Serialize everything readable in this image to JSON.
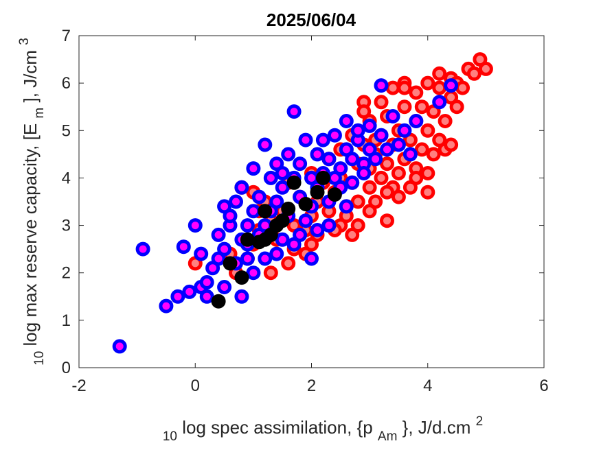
{
  "chart_data": {
    "type": "scatter",
    "title": "2025/06/04",
    "xlabel": {
      "prefix": "10",
      "main": "log spec assimilation, {p",
      "sub": "Am",
      "suffix": "}, J/d.cm",
      "sup": "2"
    },
    "ylabel": {
      "prefix": "10",
      "main": "log max reserve capacity, [E",
      "sub": "m",
      "suffix": "], J/cm",
      "sup": "3"
    },
    "xlim": [
      -2,
      6
    ],
    "ylim": [
      0,
      7
    ],
    "x_ticks": [
      -2,
      0,
      2,
      4,
      6
    ],
    "y_ticks": [
      0,
      1,
      2,
      3,
      4,
      5,
      6,
      7
    ],
    "grid": false,
    "legend": "none",
    "series": [
      {
        "ring_color": "#ff0000",
        "center_color": "#ff8080",
        "points": [
          [
            0.0,
            2.2
          ],
          [
            0.7,
            2.0
          ],
          [
            0.9,
            2.3
          ],
          [
            1.0,
            2.6
          ],
          [
            1.1,
            2.9
          ],
          [
            0.8,
            3.8
          ],
          [
            1.0,
            3.7
          ],
          [
            1.2,
            3.5
          ],
          [
            1.3,
            3.1
          ],
          [
            1.4,
            2.7
          ],
          [
            1.5,
            3.3
          ],
          [
            1.6,
            2.2
          ],
          [
            1.7,
            3.0
          ],
          [
            1.8,
            3.6
          ],
          [
            1.9,
            2.9
          ],
          [
            2.0,
            3.2
          ],
          [
            2.0,
            4.1
          ],
          [
            2.1,
            3.5
          ],
          [
            2.2,
            3.9
          ],
          [
            2.3,
            3.3
          ],
          [
            2.3,
            4.4
          ],
          [
            2.4,
            3.7
          ],
          [
            2.5,
            3.0
          ],
          [
            2.5,
            4.0
          ],
          [
            2.6,
            4.6
          ],
          [
            2.6,
            3.4
          ],
          [
            2.7,
            3.9
          ],
          [
            2.7,
            4.9
          ],
          [
            2.8,
            3.5
          ],
          [
            2.8,
            4.3
          ],
          [
            2.9,
            4.7
          ],
          [
            2.9,
            5.6
          ],
          [
            3.0,
            3.8
          ],
          [
            3.0,
            4.2
          ],
          [
            3.0,
            5.2
          ],
          [
            3.1,
            4.5
          ],
          [
            3.1,
            3.5
          ],
          [
            3.2,
            4.0
          ],
          [
            3.2,
            4.9
          ],
          [
            3.2,
            5.6
          ],
          [
            3.3,
            4.3
          ],
          [
            3.3,
            5.3
          ],
          [
            3.4,
            3.8
          ],
          [
            3.4,
            4.7
          ],
          [
            3.4,
            5.9
          ],
          [
            3.5,
            4.1
          ],
          [
            3.5,
            5.0
          ],
          [
            3.6,
            4.4
          ],
          [
            3.6,
            5.5
          ],
          [
            3.6,
            6.0
          ],
          [
            3.7,
            3.8
          ],
          [
            3.7,
            4.8
          ],
          [
            3.8,
            4.2
          ],
          [
            3.8,
            5.2
          ],
          [
            3.8,
            5.8
          ],
          [
            3.9,
            4.6
          ],
          [
            3.9,
            5.5
          ],
          [
            4.0,
            4.1
          ],
          [
            4.0,
            5.0
          ],
          [
            4.0,
            6.0
          ],
          [
            4.1,
            4.5
          ],
          [
            4.1,
            5.4
          ],
          [
            4.2,
            4.8
          ],
          [
            4.2,
            5.9
          ],
          [
            4.2,
            6.2
          ],
          [
            4.3,
            5.2
          ],
          [
            4.3,
            4.6
          ],
          [
            4.4,
            5.7
          ],
          [
            4.4,
            6.1
          ],
          [
            4.5,
            5.5
          ],
          [
            4.5,
            6.0
          ],
          [
            4.6,
            5.9
          ],
          [
            4.7,
            6.3
          ],
          [
            4.8,
            6.2
          ],
          [
            4.9,
            6.5
          ],
          [
            5.0,
            6.3
          ],
          [
            1.7,
            2.5
          ],
          [
            2.1,
            2.8
          ],
          [
            2.6,
            3.2
          ],
          [
            3.0,
            3.3
          ],
          [
            1.3,
            2.0
          ],
          [
            3.5,
            3.6
          ],
          [
            4.0,
            3.7
          ],
          [
            3.3,
            3.1
          ],
          [
            2.4,
            2.9
          ],
          [
            1.9,
            2.4
          ],
          [
            2.8,
            3.0
          ],
          [
            3.8,
            4.0
          ],
          [
            4.4,
            4.7
          ],
          [
            3.1,
            4.8
          ],
          [
            2.2,
            4.0
          ],
          [
            2.5,
            4.6
          ],
          [
            1.6,
            3.9
          ],
          [
            2.9,
            5.4
          ],
          [
            3.6,
            5.9
          ],
          [
            0.6,
            2.4
          ],
          [
            1.1,
            3.3
          ],
          [
            2.0,
            2.6
          ],
          [
            2.7,
            2.8
          ],
          [
            3.3,
            3.7
          ]
        ]
      },
      {
        "ring_color": "#0000ff",
        "center_color": "#ff00ff",
        "points": [
          [
            -1.3,
            0.45
          ],
          [
            -0.9,
            2.5
          ],
          [
            -0.5,
            1.3
          ],
          [
            -0.3,
            1.5
          ],
          [
            -0.2,
            2.55
          ],
          [
            -0.1,
            1.6
          ],
          [
            0.0,
            3.0
          ],
          [
            0.1,
            1.7
          ],
          [
            0.1,
            2.4
          ],
          [
            0.2,
            1.5
          ],
          [
            0.2,
            1.8
          ],
          [
            0.3,
            2.1
          ],
          [
            0.4,
            2.3
          ],
          [
            0.4,
            2.8
          ],
          [
            0.5,
            2.5
          ],
          [
            0.5,
            3.4
          ],
          [
            0.5,
            1.7
          ],
          [
            0.6,
            3.0
          ],
          [
            0.6,
            3.2
          ],
          [
            0.7,
            2.2
          ],
          [
            0.7,
            3.5
          ],
          [
            0.8,
            2.7
          ],
          [
            0.8,
            3.8
          ],
          [
            0.8,
            1.5
          ],
          [
            0.9,
            3.0
          ],
          [
            0.9,
            2.3
          ],
          [
            1.0,
            3.3
          ],
          [
            1.0,
            4.2
          ],
          [
            1.1,
            2.8
          ],
          [
            1.1,
            3.6
          ],
          [
            1.2,
            3.0
          ],
          [
            1.2,
            4.7
          ],
          [
            1.2,
            2.3
          ],
          [
            1.3,
            3.3
          ],
          [
            1.3,
            4.0
          ],
          [
            1.4,
            3.5
          ],
          [
            1.4,
            4.3
          ],
          [
            1.5,
            2.7
          ],
          [
            1.5,
            3.8
          ],
          [
            1.6,
            4.5
          ],
          [
            1.6,
            3.2
          ],
          [
            1.7,
            4.0
          ],
          [
            1.7,
            5.4
          ],
          [
            1.7,
            2.6
          ],
          [
            1.8,
            3.6
          ],
          [
            1.8,
            4.3
          ],
          [
            1.9,
            4.8
          ],
          [
            1.9,
            3.1
          ],
          [
            2.0,
            4.0
          ],
          [
            2.0,
            3.4
          ],
          [
            2.0,
            2.3
          ],
          [
            2.1,
            4.5
          ],
          [
            2.1,
            3.8
          ],
          [
            2.2,
            4.1
          ],
          [
            2.2,
            4.8
          ],
          [
            2.3,
            3.5
          ],
          [
            2.3,
            4.4
          ],
          [
            2.4,
            4.0
          ],
          [
            2.4,
            4.9
          ],
          [
            2.5,
            4.2
          ],
          [
            2.5,
            3.8
          ],
          [
            2.6,
            4.6
          ],
          [
            2.6,
            5.2
          ],
          [
            2.7,
            4.4
          ],
          [
            2.7,
            3.9
          ],
          [
            2.8,
            4.8
          ],
          [
            2.8,
            5.0
          ],
          [
            2.9,
            4.3
          ],
          [
            2.9,
            4.1
          ],
          [
            3.0,
            4.6
          ],
          [
            3.0,
            5.1
          ],
          [
            3.1,
            4.4
          ],
          [
            3.2,
            4.9
          ],
          [
            3.2,
            5.95
          ],
          [
            3.3,
            4.6
          ],
          [
            3.4,
            5.3
          ],
          [
            3.5,
            4.7
          ],
          [
            3.6,
            5.0
          ],
          [
            3.7,
            4.5
          ],
          [
            3.8,
            5.2
          ],
          [
            4.2,
            5.6
          ],
          [
            4.4,
            5.95
          ],
          [
            1.0,
            2.0
          ],
          [
            1.4,
            2.4
          ],
          [
            2.1,
            2.9
          ],
          [
            2.6,
            3.4
          ],
          [
            1.8,
            2.8
          ],
          [
            0.9,
            2.6
          ],
          [
            1.5,
            4.1
          ],
          [
            2.3,
            3.0
          ]
        ]
      },
      {
        "ring_color": "#000000",
        "center_color": "#000000",
        "points": [
          [
            0.4,
            1.4
          ],
          [
            0.6,
            2.2
          ],
          [
            0.8,
            1.9
          ],
          [
            0.9,
            2.7
          ],
          [
            1.1,
            2.65
          ],
          [
            1.2,
            3.3
          ],
          [
            1.2,
            2.7
          ],
          [
            1.3,
            2.8
          ],
          [
            1.4,
            3.0
          ],
          [
            1.5,
            3.1
          ],
          [
            1.6,
            3.35
          ],
          [
            1.7,
            3.9
          ],
          [
            1.9,
            3.45
          ],
          [
            2.1,
            3.7
          ],
          [
            2.2,
            4.0
          ],
          [
            2.4,
            3.65
          ]
        ]
      }
    ]
  }
}
